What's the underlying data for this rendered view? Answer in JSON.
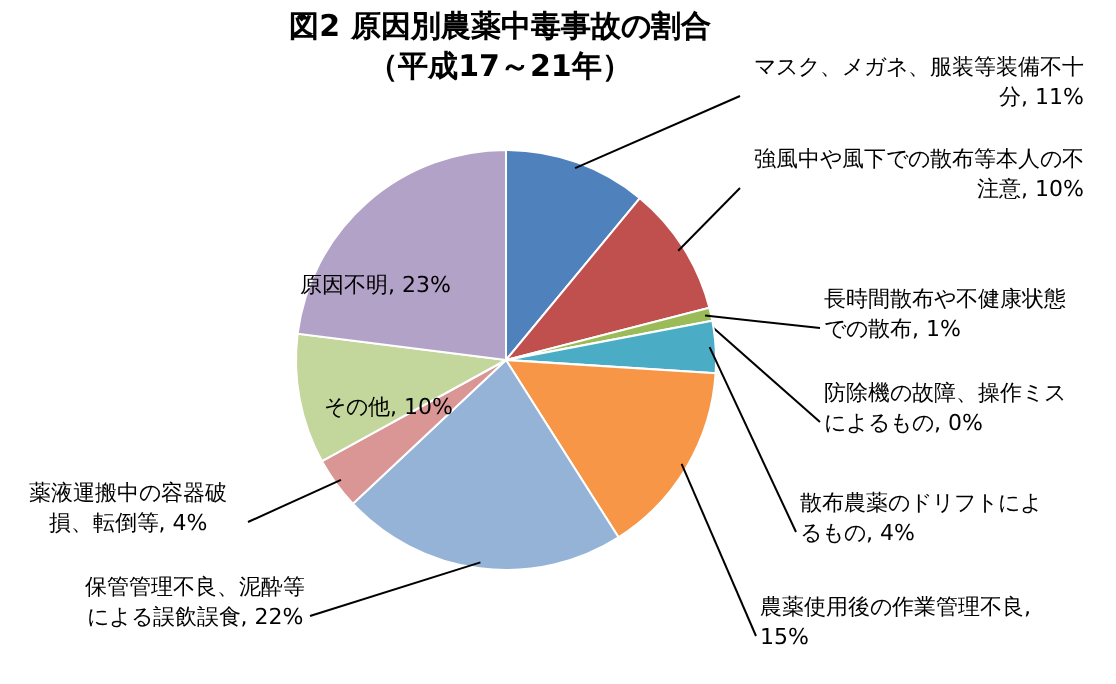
{
  "chart_data": {
    "type": "pie",
    "title": "図2 原因別農薬中毒事故の割合",
    "subtitle": "（平成17～21年）",
    "categories": [
      "マスク、メガネ、服装等装備不十分",
      "強風中や風下での散布等本人の不注意",
      "長時間散布や不健康状態での散布",
      "防除機の故障、操作ミスによるもの",
      "散布農薬のドリフトによるもの",
      "農薬使用後の作業管理不良",
      "保管管理不良、泥酔等による誤飲誤食",
      "薬液運搬中の容器破損、転倒等",
      "その他",
      "原因不明"
    ],
    "values": [
      11,
      10,
      1,
      0,
      4,
      15,
      22,
      4,
      10,
      23
    ],
    "colors": [
      "#4f81bd",
      "#c0504d",
      "#9bbb59",
      "#8064a2",
      "#4bacc6",
      "#f79646",
      "#95b3d7",
      "#d99694",
      "#c3d69b",
      "#b3a2c7"
    ],
    "value_labels": [
      ", 11%",
      ", 10%",
      ", 1%",
      ", 0%",
      ", 4%",
      ", 15%",
      ", 22%",
      ", 4%",
      ", 10%",
      ", 23%"
    ]
  }
}
